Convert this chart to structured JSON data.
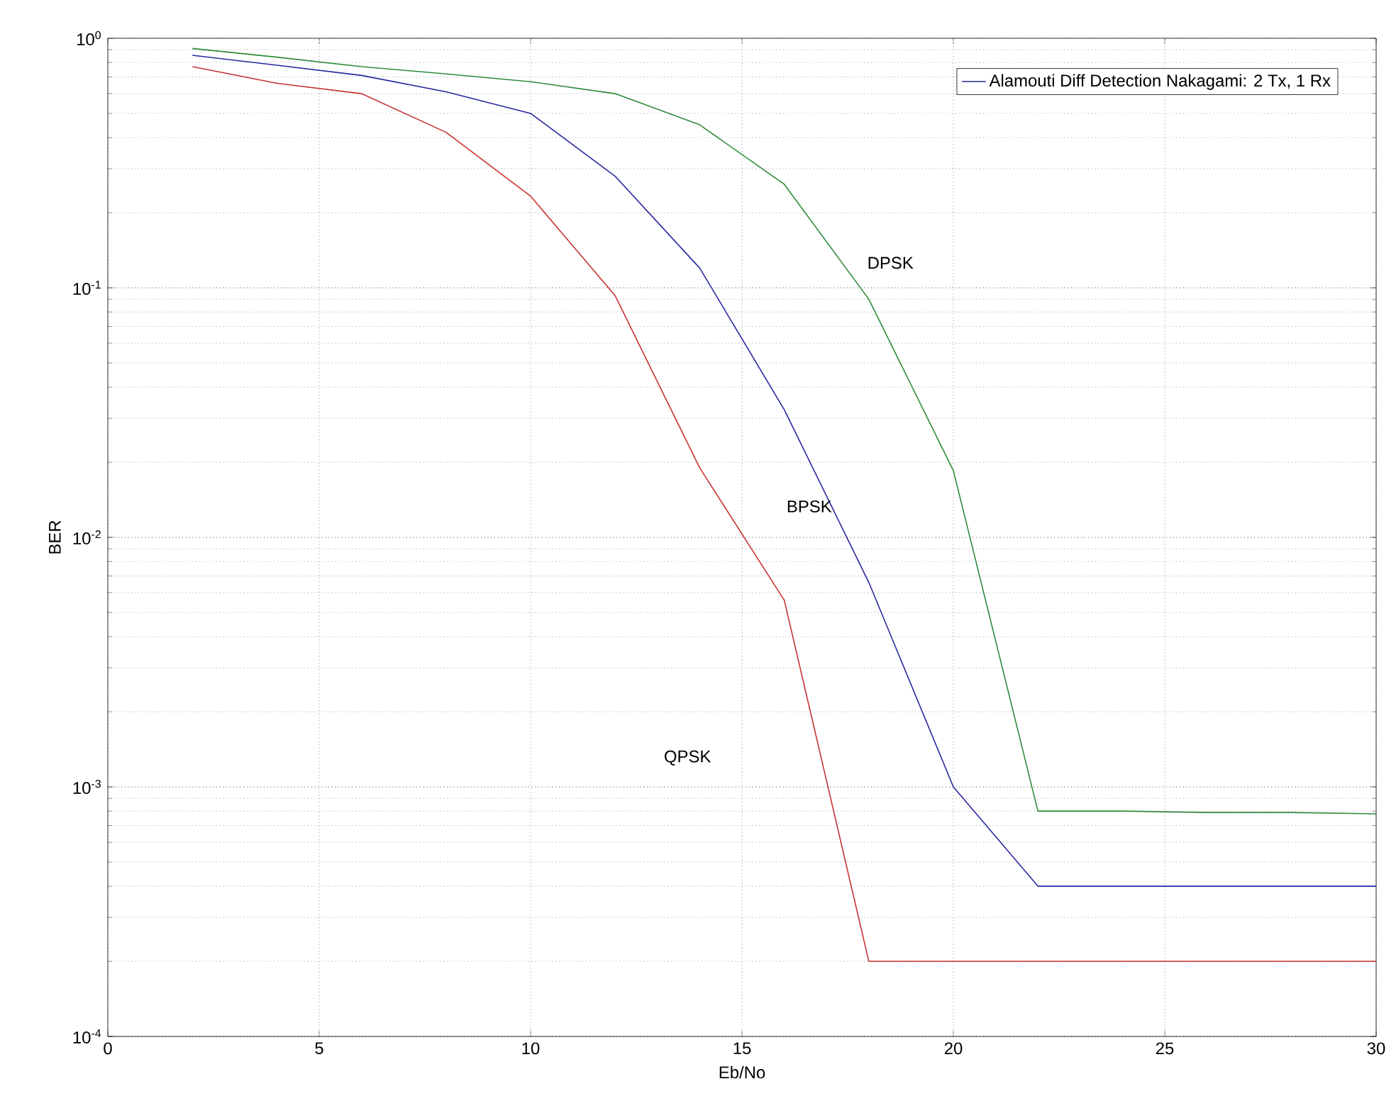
{
  "chart_data": {
    "type": "line",
    "xlabel": "Eb/No",
    "ylabel": "BER",
    "x": [
      2,
      4,
      6,
      8,
      10,
      12,
      14,
      16,
      18,
      20,
      22,
      24,
      26,
      28,
      30
    ],
    "series": [
      {
        "name": "Alamouti Diff Detection Nakagami: 2 Tx, 1 Rx",
        "color": "#2828a0",
        "values": [
          0.855,
          0.78,
          0.71,
          0.61,
          0.5,
          0.28,
          0.12,
          0.0325,
          0.0066,
          0.001,
          0.0004,
          0.0004,
          0.0004,
          0.0004,
          0.0004
        ]
      },
      {
        "color": "#c83232",
        "values": [
          0.77,
          0.66,
          0.6,
          0.42,
          0.233,
          0.093,
          0.019,
          0.0056,
          0.0002,
          0.0002,
          0.0002,
          0.0002,
          0.0002,
          0.0002,
          0.0002
        ]
      },
      {
        "color": "#2e8b3a",
        "values": [
          0.91,
          0.84,
          0.77,
          0.72,
          0.67,
          0.6,
          0.45,
          0.26,
          0.09,
          0.0185,
          0.0008,
          0.0008,
          0.00079,
          0.00079,
          0.00078
        ]
      }
    ],
    "annotations": [
      "DPSK",
      "BPSK",
      "QPSK"
    ],
    "log": "y",
    "grid": true,
    "legend": "top right",
    "line_style": "solid",
    "marker": "none",
    "xlim": [
      0,
      30
    ],
    "ylim": [
      0.0001,
      1
    ],
    "xticks": [
      0,
      5,
      10,
      15,
      20,
      25,
      30
    ],
    "yticks": [
      {
        "value": 0.0001,
        "label": "10$^{-4}$"
      },
      {
        "value": 0.001,
        "label": "10$^{-3}$"
      },
      {
        "value": 0.01,
        "label": "10$^{-2}$"
      },
      {
        "value": 0.1,
        "label": "10$^{-1}$"
      },
      {
        "value": 1,
        "label": "10$^{0}$"
      }
    ]
  }
}
